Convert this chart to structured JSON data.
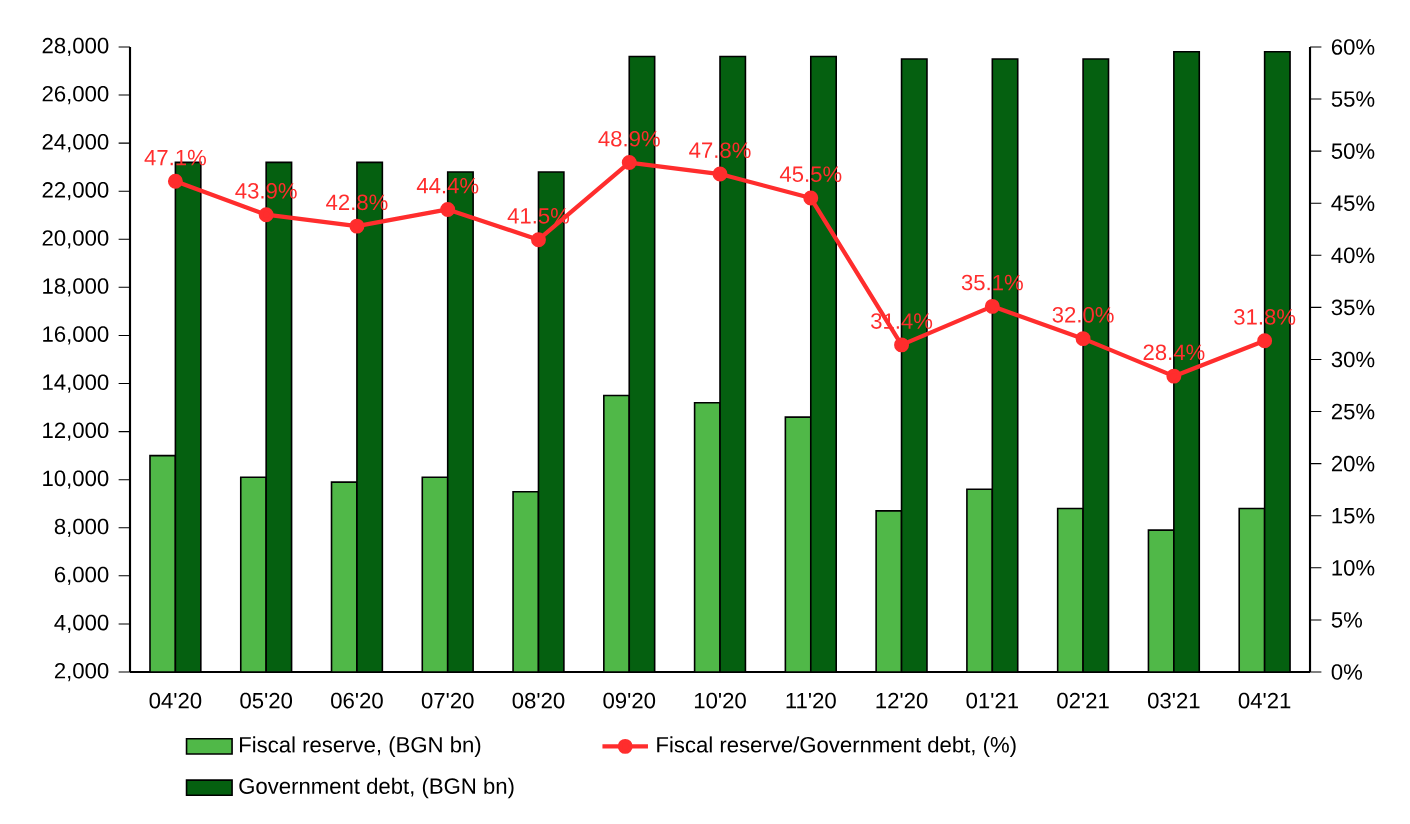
{
  "chart_data": {
    "type": "bar",
    "categories": [
      "04'20",
      "05'20",
      "06'20",
      "07'20",
      "08'20",
      "09'20",
      "10'20",
      "11'20",
      "12'20",
      "01'21",
      "02'21",
      "03'21",
      "04'21"
    ],
    "series": [
      {
        "name": "Fiscal reserve, (BGN bn)",
        "color": "#50b848",
        "values": [
          11000,
          10100,
          9900,
          10100,
          9500,
          13500,
          13200,
          12600,
          8700,
          9600,
          8800,
          7900,
          8800
        ]
      },
      {
        "name": "Government debt, (BGN bn)",
        "color": "#056010",
        "values": [
          23200,
          23200,
          23200,
          22800,
          22800,
          27600,
          27600,
          27600,
          27500,
          27500,
          27500,
          27800,
          27800
        ]
      },
      {
        "name": "Fiscal reserve/Government debt, (%)",
        "type": "line",
        "axis": "y2",
        "color": "#ff2d2d",
        "marker": "circle",
        "values": [
          47.1,
          43.9,
          42.8,
          44.4,
          41.5,
          48.9,
          47.8,
          45.5,
          31.4,
          35.1,
          32.0,
          28.4,
          31.8
        ],
        "value_labels": [
          "47.1%",
          "43.9%",
          "42.8%",
          "44.4%",
          "41.5%",
          "48.9%",
          "47.8%",
          "45.5%",
          "31.4%",
          "35.1%",
          "32.0%",
          "28.4%",
          "31.8%"
        ]
      }
    ],
    "ylim": [
      2000,
      28000
    ],
    "yticks": [
      {
        "value": 2000,
        "label": "2,000"
      },
      {
        "value": 4000,
        "label": "4,000"
      },
      {
        "value": 6000,
        "label": "6,000"
      },
      {
        "value": 8000,
        "label": "8,000"
      },
      {
        "value": 10000,
        "label": "10,000"
      },
      {
        "value": 12000,
        "label": "12,000"
      },
      {
        "value": 14000,
        "label": "14,000"
      },
      {
        "value": 16000,
        "label": "16,000"
      },
      {
        "value": 18000,
        "label": "18,000"
      },
      {
        "value": 20000,
        "label": "20,000"
      },
      {
        "value": 22000,
        "label": "22,000"
      },
      {
        "value": 24000,
        "label": "24,000"
      },
      {
        "value": 26000,
        "label": "26,000"
      },
      {
        "value": 28000,
        "label": "28,000"
      }
    ],
    "y2lim": [
      0,
      60
    ],
    "y2ticks": [
      {
        "value": 0,
        "label": "0%"
      },
      {
        "value": 5,
        "label": "5%"
      },
      {
        "value": 10,
        "label": "10%"
      },
      {
        "value": 15,
        "label": "15%"
      },
      {
        "value": 20,
        "label": "20%"
      },
      {
        "value": 25,
        "label": "25%"
      },
      {
        "value": 30,
        "label": "30%"
      },
      {
        "value": 35,
        "label": "35%"
      },
      {
        "value": 40,
        "label": "40%"
      },
      {
        "value": 45,
        "label": "45%"
      },
      {
        "value": 50,
        "label": "50%"
      },
      {
        "value": 55,
        "label": "55%"
      },
      {
        "value": 60,
        "label": "60%"
      }
    ],
    "grid": false,
    "legend": "bottom"
  }
}
